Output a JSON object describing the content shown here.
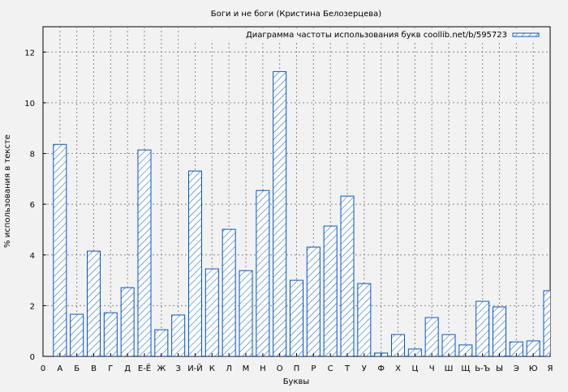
{
  "chart_data": {
    "type": "bar",
    "title": "Боги и не боги (Кристина Белозерцева)",
    "xlabel": "Буквы",
    "ylabel": "% использования в тексте",
    "legend": {
      "label": "Диаграмма частоты использования букв coollib.net/b/595723",
      "placement": "top-right"
    },
    "x_tick_labels": [
      "0",
      "А",
      "Б",
      "В",
      "Г",
      "Д",
      "Е-Ё",
      "Ж",
      "З",
      "И-Й",
      "К",
      "Л",
      "М",
      "Н",
      "О",
      "П",
      "Р",
      "С",
      "Т",
      "У",
      "Ф",
      "Х",
      "Ц",
      "Ч",
      "Ш",
      "Щ",
      "Ь-Ъ",
      "Ы",
      "Э",
      "Ю",
      "Я"
    ],
    "categories": [
      "А",
      "Б",
      "В",
      "Г",
      "Д",
      "Е-Ё",
      "Ж",
      "З",
      "И-Й",
      "К",
      "Л",
      "М",
      "Н",
      "О",
      "П",
      "Р",
      "С",
      "Т",
      "У",
      "Ф",
      "Х",
      "Ц",
      "Ч",
      "Ш",
      "Щ",
      "Ь-Ъ",
      "Ы",
      "Э",
      "Ю",
      "Я"
    ],
    "values": [
      8.36,
      1.66,
      4.15,
      1.72,
      2.71,
      8.14,
      1.05,
      1.63,
      7.31,
      3.45,
      5.01,
      3.38,
      6.54,
      11.23,
      3.0,
      4.31,
      5.14,
      6.32,
      2.87,
      0.13,
      0.86,
      0.29,
      1.53,
      0.86,
      0.45,
      2.17,
      1.95,
      0.57,
      0.61,
      2.59
    ],
    "y_ticks": [
      0,
      2,
      4,
      6,
      8,
      10,
      12
    ],
    "ylim": [
      0,
      13
    ],
    "xlim": [
      0,
      30
    ],
    "grid": true,
    "colors": {
      "bar_stroke": "#0055cc",
      "hatch": "#0055cc",
      "bar_fill": "#ffffff",
      "background": "#f2f2f2"
    }
  }
}
